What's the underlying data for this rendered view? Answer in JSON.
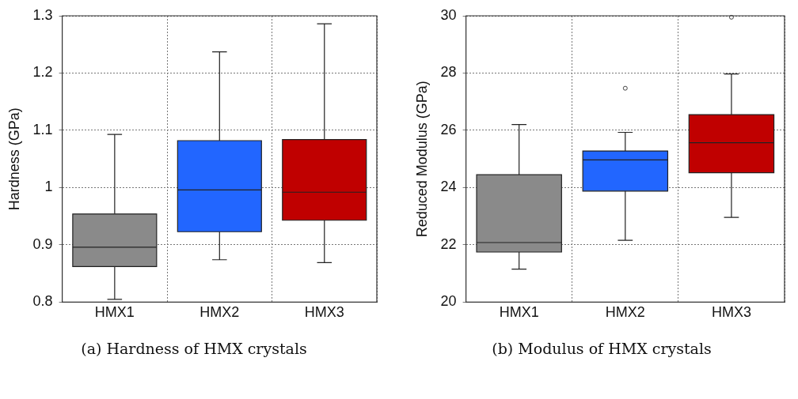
{
  "chart_data": [
    {
      "type": "box",
      "ylabel": "Hardness (GPa)",
      "categories": [
        "HMX1",
        "HMX2",
        "HMX3"
      ],
      "colors": [
        "#8a8a8a",
        "#2266ff",
        "#c00000"
      ],
      "ylim": [
        0.8,
        1.3
      ],
      "yticks": [
        0.8,
        0.9,
        1,
        1.1,
        1.2,
        1.3
      ],
      "grid": true,
      "boxes": [
        {
          "low": 0.805,
          "q1": 0.862,
          "median": 0.896,
          "q3": 0.954,
          "high": 1.093
        },
        {
          "low": 0.874,
          "q1": 0.923,
          "median": 0.996,
          "q3": 1.082,
          "high": 1.237
        },
        {
          "low": 0.869,
          "q1": 0.943,
          "median": 0.992,
          "q3": 1.084,
          "high": 1.286
        }
      ],
      "annotations": [
        "(a) Hardness of HMX crystals"
      ]
    },
    {
      "type": "box",
      "ylabel": "Reduced Modulus (GPa)",
      "categories": [
        "HMX1",
        "HMX2",
        "HMX3"
      ],
      "colors": [
        "#8a8a8a",
        "#2266ff",
        "#c00000"
      ],
      "ylim": [
        20,
        30
      ],
      "yticks": [
        20,
        22,
        24,
        26,
        28,
        30
      ],
      "grid": true,
      "boxes": [
        {
          "low": 21.15,
          "q1": 21.75,
          "median": 22.08,
          "q3": 24.45,
          "high": 26.2
        },
        {
          "low": 22.16,
          "q1": 23.88,
          "median": 24.97,
          "q3": 25.28,
          "high": 25.93,
          "outliers": [
            27.47
          ]
        },
        {
          "low": 22.96,
          "q1": 24.52,
          "median": 25.57,
          "q3": 26.55,
          "high": 27.97,
          "outliers": [
            29.95
          ]
        }
      ],
      "annotations": [
        "(b) Modulus of HMX crystals"
      ]
    }
  ]
}
